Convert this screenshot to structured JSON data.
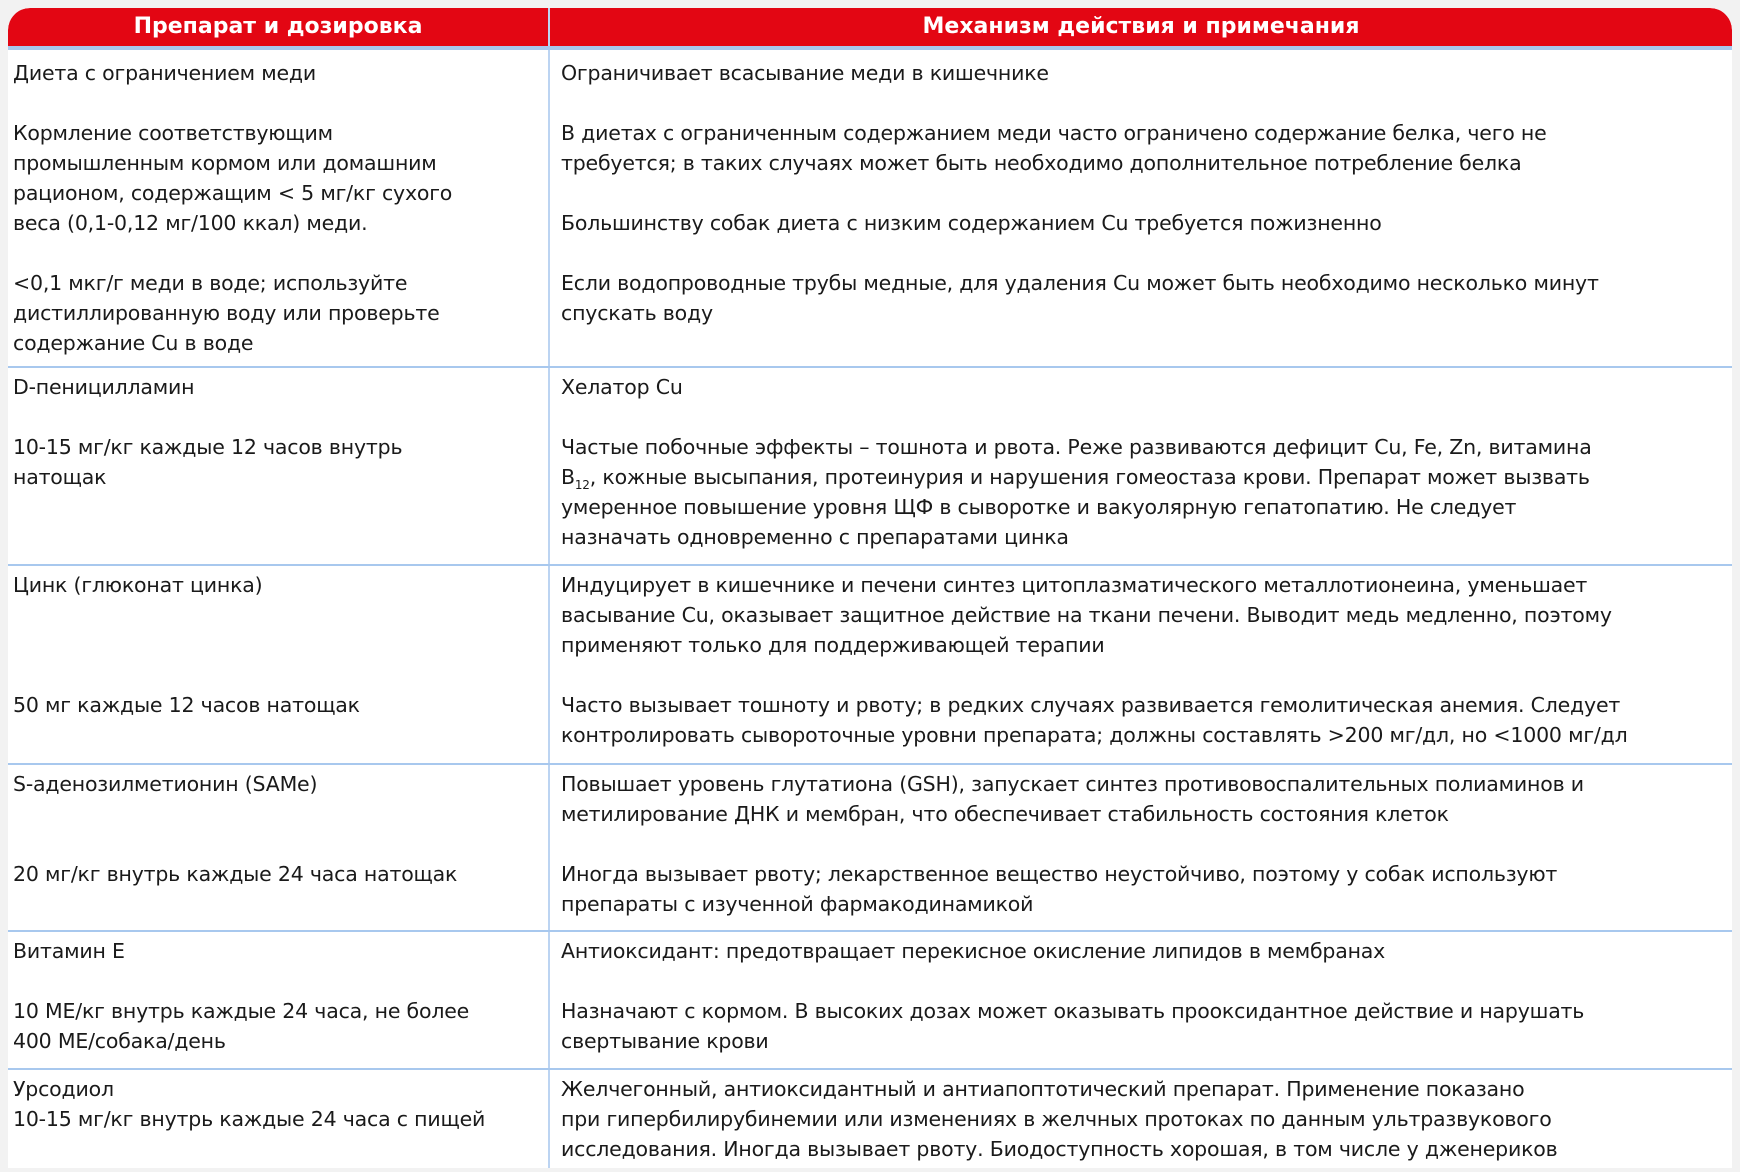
{
  "header": {
    "col1": "Препарат и дозировка",
    "col2": "Механизм действия и примечания"
  },
  "rows": [
    {
      "left": [
        "Диета с ограничением меди",
        "Кормление соответствующим\nпромышленным кормом или домашним\nрационом, содержащим < 5 мг/кг сухого\nвеса (0,1-0,12 мг/100 ккал) меди.",
        "<0,1 мкг/г меди в воде; используйте\nдистиллированную воду или проверьте\nсодержание Cu в воде"
      ],
      "right": [
        "Ограничивает всасывание меди в кишечнике",
        "В диетах с ограниченным содержанием меди часто ограничено содержание белка, чего не\nтребуется; в таких случаях может быть необходимо дополнительное потребление белка",
        "Большинству собак диета с низким содержанием Cu требуется пожизненно",
        "Если водопроводные трубы медные, для удаления Cu может быть необходимо несколько минут\nспускать воду"
      ]
    },
    {
      "left": [
        "D-пеницилламин",
        "10-15 мг/кг каждые 12 часов внутрь\nнатощак"
      ],
      "right": [
        "Хелатор Cu",
        "Частые побочные эффекты – тошнота и рвота. Реже развиваются дефицит Cu, Fe, Zn, витамина\nB",
        "12",
        ", кожные высыпания, протеинурия и нарушения гомеостаза крови. Препарат может вызвать\nумеренное повышение уровня ЩФ в сыворотке и вакуолярную гепатопатию. Не следует\nназначать одновременно с препаратами цинка"
      ]
    },
    {
      "left": [
        "Цинк (глюконат цинка)",
        "50 мг каждые 12 часов натощак"
      ],
      "right": [
        "Индуцирует в кишечнике и печени синтез цитоплазматического металлотионеина, уменьшает\nвасывание Cu, оказывает защитное действие на ткани печени. Выводит медь медленно, поэтому\nприменяют только для поддерживающей терапии",
        "Часто вызывает тошноту и рвоту; в редких случаях развивается гемолитическая анемия. Следует\nконтролировать сывороточные уровни препарата; должны составлять >200 мг/дл, но <1000 мг/дл"
      ]
    },
    {
      "left": [
        "S-аденозилметионин (SAMe)",
        "20 мг/кг внутрь каждые 24 часа натощак"
      ],
      "right": [
        "Повышает уровень глутатиона (GSH), запускает синтез противовоспалительных полиаминов и\nметилирование ДНК и мембран, что обеспечивает стабильность состояния клеток",
        "Иногда вызывает рвоту; лекарственное вещество неустойчиво, поэтому у собак используют\nпрепараты с изученной фармакодинамикой"
      ]
    },
    {
      "left": [
        "Витамин E",
        "10 МЕ/кг внутрь каждые 24 часа, не более\n400 МЕ/собака/день"
      ],
      "right": [
        "Антиоксидант: предотвращает перекисное окисление липидов в мембранах",
        "Назначают с кормом. В высоких дозах может оказывать прооксидантное действие и нарушать\nсвертывание крови"
      ]
    },
    {
      "left": [
        "Урсодиол\n10-15 мг/кг внутрь каждые 24 часа с пищей"
      ],
      "right": [
        "Желчегонный, антиоксидантный и антиапоптотический препарат. Применение показано\nпри гипербилирубинемии или изменениях в желчных протоках по данным ультразвукового\nисследования. Иногда вызывает рвоту. Биодоступность хорошая, в том числе у дженериков"
      ]
    }
  ],
  "colors": {
    "header_bg": "#e30613",
    "rule": "#a8c8ee"
  }
}
